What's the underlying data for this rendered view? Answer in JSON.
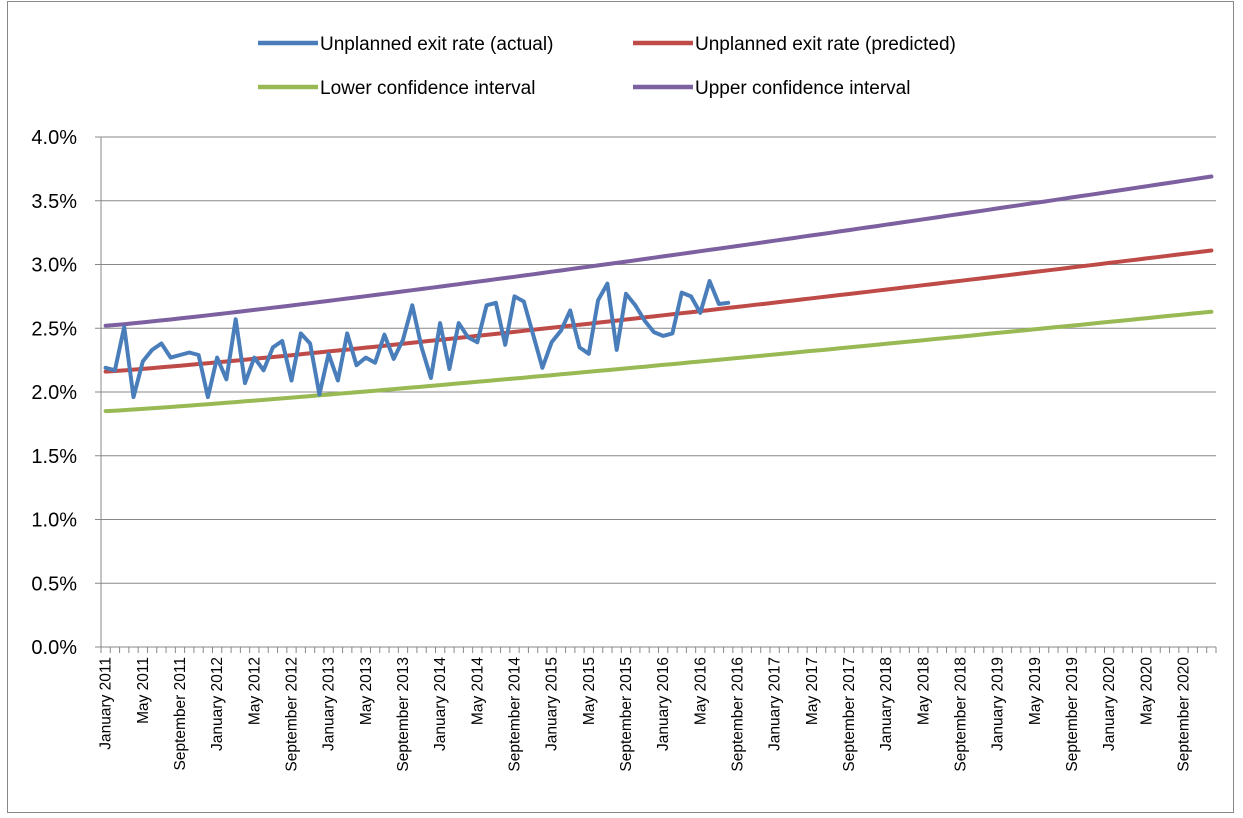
{
  "chart_data": {
    "type": "line",
    "title": "",
    "xlabel": "",
    "ylabel": "",
    "ylim": [
      0,
      0.04
    ],
    "y_tick_labels": [
      "0.0%",
      "0.5%",
      "1.0%",
      "1.5%",
      "2.0%",
      "2.5%",
      "3.0%",
      "3.5%",
      "4.0%"
    ],
    "x_start": "2011-01",
    "x_end": "2020-12",
    "x_tick_labels": [
      "January 2011",
      "May 2011",
      "September 2011",
      "January 2012",
      "May 2012",
      "September 2012",
      "January 2013",
      "May 2013",
      "September 2013",
      "January 2014",
      "May 2014",
      "September 2014",
      "January 2015",
      "May 2015",
      "September 2015",
      "January 2016",
      "May 2016",
      "September 2016",
      "January 2017",
      "May 2017",
      "September 2017",
      "January 2018",
      "May 2018",
      "September 2018",
      "January 2019",
      "May 2019",
      "September 2019",
      "January 2020",
      "May 2020",
      "September 2020"
    ],
    "grid": true,
    "legend_position": "top",
    "series": [
      {
        "name": "Unplanned exit rate (actual)",
        "color": "#4a7ebb",
        "kind": "monthly",
        "start": "2011-01",
        "values": [
          0.0219,
          0.0217,
          0.0251,
          0.0196,
          0.0224,
          0.0233,
          0.0238,
          0.0227,
          0.0229,
          0.0231,
          0.0229,
          0.0196,
          0.0227,
          0.021,
          0.0257,
          0.0207,
          0.0227,
          0.0217,
          0.0235,
          0.024,
          0.0209,
          0.0246,
          0.0238,
          0.0198,
          0.023,
          0.0209,
          0.0246,
          0.0221,
          0.0227,
          0.0223,
          0.0245,
          0.0226,
          0.0241,
          0.0268,
          0.0235,
          0.0211,
          0.0254,
          0.0218,
          0.0254,
          0.0243,
          0.0239,
          0.0268,
          0.027,
          0.0237,
          0.0275,
          0.0271,
          0.0245,
          0.0219,
          0.0239,
          0.0248,
          0.0264,
          0.0235,
          0.023,
          0.0272,
          0.0285,
          0.0233,
          0.0277,
          0.0268,
          0.0256,
          0.0247,
          0.0244,
          0.0246,
          0.0278,
          0.0275,
          0.0262,
          0.0287,
          0.0269,
          0.027
        ]
      },
      {
        "name": "Unplanned exit rate (predicted)",
        "color": "#be4b48",
        "kind": "linear",
        "start": "2011-01",
        "end": "2020-12",
        "from": 0.0216,
        "to": 0.0311
      },
      {
        "name": "Lower confidence interval",
        "color": "#98b954",
        "kind": "linear",
        "start": "2011-01",
        "end": "2020-12",
        "from": 0.0185,
        "to": 0.0263
      },
      {
        "name": "Upper confidence interval",
        "color": "#7d60a0",
        "kind": "linear",
        "start": "2011-01",
        "end": "2020-12",
        "from": 0.0252,
        "to": 0.0369
      }
    ]
  }
}
